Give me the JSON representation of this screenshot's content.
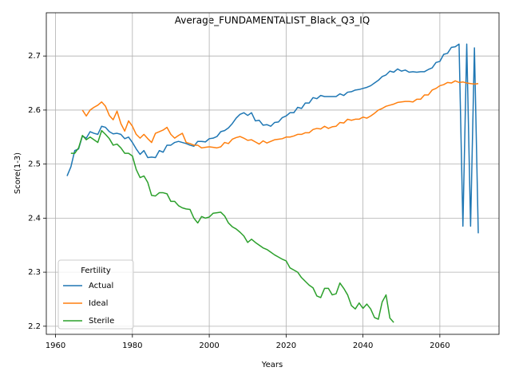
{
  "chart_data": {
    "type": "line",
    "title": "Average_FUNDAMENTALIST_Black_Q3_IQ",
    "x_label": "Years",
    "y_label": "Score(1-3)",
    "legend_title": "Fertility",
    "legend_position": "lower left",
    "grid": true,
    "xlim": [
      1957.6,
      2075.4
    ],
    "ylim": [
      2.185,
      2.78
    ],
    "xticks": [
      1960,
      1980,
      2000,
      2020,
      2040,
      2060
    ],
    "yticks": [
      2.2,
      2.3,
      2.4,
      2.5,
      2.6,
      2.7
    ],
    "x": [
      1963,
      1964,
      1965,
      1966,
      1967,
      1968,
      1969,
      1970,
      1971,
      1972,
      1973,
      1974,
      1975,
      1976,
      1977,
      1978,
      1979,
      1980,
      1981,
      1982,
      1983,
      1984,
      1985,
      1986,
      1987,
      1988,
      1989,
      1990,
      1991,
      1992,
      1993,
      1994,
      1995,
      1996,
      1997,
      1998,
      1999,
      2000,
      2001,
      2002,
      2003,
      2004,
      2005,
      2006,
      2007,
      2008,
      2009,
      2010,
      2011,
      2012,
      2013,
      2014,
      2015,
      2016,
      2017,
      2018,
      2019,
      2020,
      2021,
      2022,
      2023,
      2024,
      2025,
      2026,
      2027,
      2028,
      2029,
      2030,
      2031,
      2032,
      2033,
      2034,
      2035,
      2036,
      2037,
      2038,
      2039,
      2040,
      2041,
      2042,
      2043,
      2044,
      2045,
      2046,
      2047,
      2048,
      2049,
      2050,
      2051,
      2052,
      2053,
      2054,
      2055,
      2056,
      2057,
      2058,
      2059,
      2060,
      2061,
      2062,
      2063,
      2064,
      2065,
      2066,
      2067,
      2068,
      2069,
      2070
    ],
    "series": [
      {
        "name": "Actual",
        "color": "#1f77b4",
        "values": [
          2.478,
          2.495,
          2.525,
          2.528,
          2.552,
          2.548,
          2.56,
          2.557,
          2.555,
          2.57,
          2.568,
          2.56,
          2.556,
          2.557,
          2.555,
          2.547,
          2.55,
          2.54,
          2.528,
          2.518,
          2.525,
          2.512,
          2.513,
          2.512,
          2.525,
          2.522,
          2.535,
          2.535,
          2.54,
          2.542,
          2.54,
          2.538,
          2.535,
          2.533,
          2.542,
          2.542,
          2.541,
          2.547,
          2.548,
          2.551,
          2.56,
          2.562,
          2.567,
          2.575,
          2.585,
          2.592,
          2.595,
          2.59,
          2.595,
          2.58,
          2.581,
          2.572,
          2.573,
          2.57,
          2.577,
          2.578,
          2.586,
          2.589,
          2.595,
          2.595,
          2.605,
          2.603,
          2.613,
          2.613,
          2.623,
          2.621,
          2.627,
          2.625,
          2.625,
          2.625,
          2.625,
          2.63,
          2.627,
          2.633,
          2.634,
          2.637,
          2.638,
          2.64,
          2.642,
          2.645,
          2.65,
          2.655,
          2.662,
          2.665,
          2.672,
          2.67,
          2.676,
          2.672,
          2.674,
          2.67,
          2.671,
          2.67,
          2.671,
          2.671,
          2.675,
          2.678,
          2.688,
          2.69,
          2.703,
          2.705,
          2.716,
          2.717,
          2.722,
          2.385,
          2.722,
          2.385,
          2.715,
          2.372
        ]
      },
      {
        "name": "Ideal",
        "color": "#ff7f0e",
        "values": [
          null,
          null,
          null,
          null,
          2.6,
          2.589,
          2.6,
          2.605,
          2.609,
          2.615,
          2.607,
          2.59,
          2.582,
          2.598,
          2.575,
          2.561,
          2.58,
          2.57,
          2.555,
          2.548,
          2.555,
          2.547,
          2.54,
          2.557,
          2.56,
          2.563,
          2.568,
          2.555,
          2.548,
          2.553,
          2.557,
          2.54,
          2.538,
          2.535,
          2.535,
          2.53,
          2.531,
          2.532,
          2.531,
          2.53,
          2.532,
          2.54,
          2.538,
          2.546,
          2.549,
          2.551,
          2.548,
          2.544,
          2.545,
          2.541,
          2.537,
          2.543,
          2.539,
          2.542,
          2.545,
          2.546,
          2.547,
          2.55,
          2.55,
          2.552,
          2.555,
          2.555,
          2.558,
          2.558,
          2.564,
          2.566,
          2.565,
          2.57,
          2.566,
          2.569,
          2.57,
          2.577,
          2.576,
          2.583,
          2.581,
          2.583,
          2.583,
          2.587,
          2.585,
          2.589,
          2.594,
          2.6,
          2.603,
          2.607,
          2.609,
          2.611,
          2.614,
          2.615,
          2.616,
          2.616,
          2.615,
          2.62,
          2.62,
          2.628,
          2.628,
          2.637,
          2.64,
          2.645,
          2.647,
          2.651,
          2.65,
          2.654,
          2.651,
          2.652,
          2.65,
          2.649,
          2.648,
          2.649
        ]
      },
      {
        "name": "Sterile",
        "color": "#2ca02c",
        "values": [
          null,
          2.52,
          2.52,
          2.53,
          2.553,
          2.545,
          2.55,
          2.545,
          2.54,
          2.562,
          2.555,
          2.547,
          2.535,
          2.537,
          2.53,
          2.52,
          2.52,
          2.515,
          2.49,
          2.475,
          2.478,
          2.466,
          2.442,
          2.441,
          2.447,
          2.447,
          2.445,
          2.431,
          2.431,
          2.423,
          2.419,
          2.417,
          2.416,
          2.4,
          2.391,
          2.403,
          2.4,
          2.402,
          2.409,
          2.41,
          2.411,
          2.404,
          2.391,
          2.384,
          2.38,
          2.374,
          2.367,
          2.355,
          2.361,
          2.355,
          2.35,
          2.345,
          2.342,
          2.337,
          2.332,
          2.328,
          2.324,
          2.321,
          2.308,
          2.304,
          2.3,
          2.29,
          2.283,
          2.276,
          2.271,
          2.256,
          2.253,
          2.27,
          2.27,
          2.258,
          2.26,
          2.28,
          2.27,
          2.258,
          2.238,
          2.232,
          2.243,
          2.233,
          2.241,
          2.232,
          2.216,
          2.213,
          2.245,
          2.258,
          2.215,
          2.207,
          null,
          null,
          null,
          null,
          null,
          null,
          null,
          null,
          null,
          null,
          null,
          null,
          null,
          null,
          null,
          null,
          null,
          null,
          null,
          null,
          null,
          null
        ]
      }
    ]
  }
}
